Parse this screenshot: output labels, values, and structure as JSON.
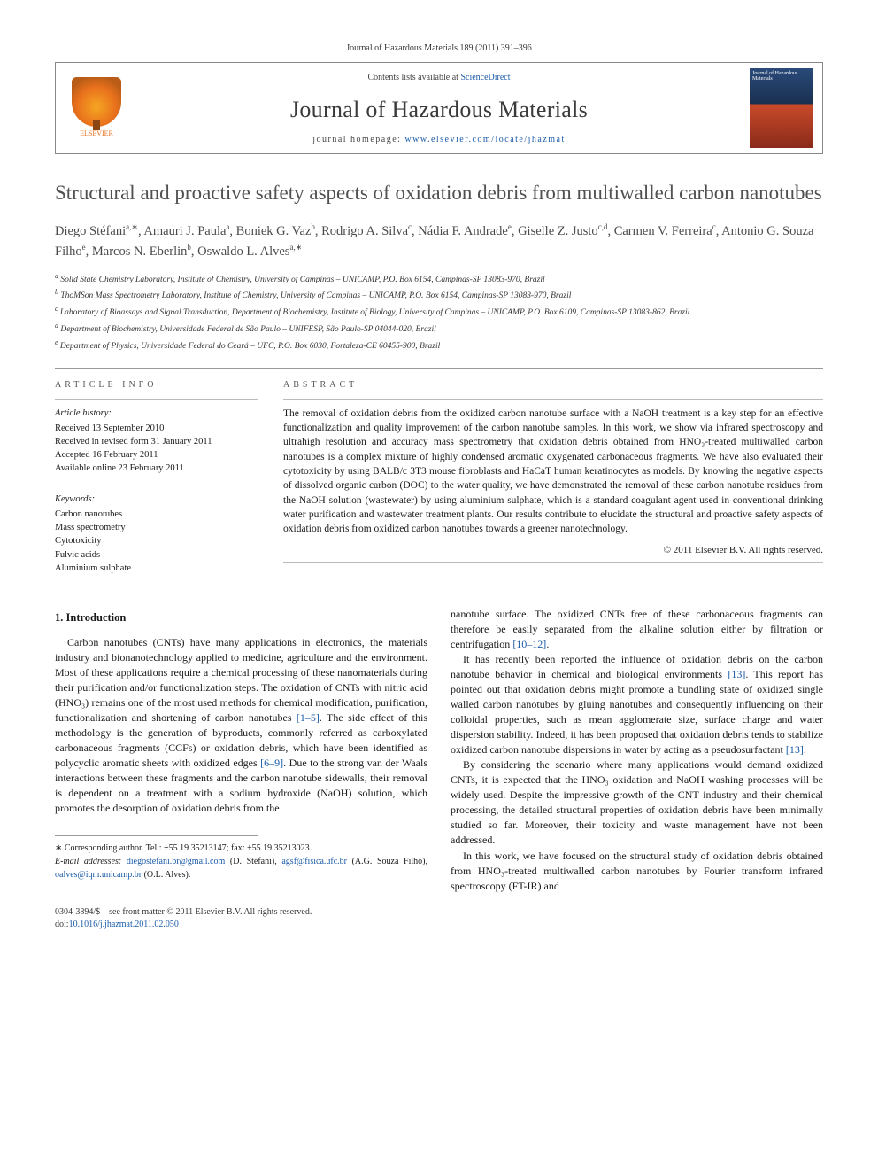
{
  "runningHead": "Journal of Hazardous Materials 189 (2011) 391–396",
  "masthead": {
    "contentsLine_prefix": "Contents lists available at ",
    "contentsLine_link": "ScienceDirect",
    "journalName": "Journal of Hazardous Materials",
    "homepage_prefix": "journal homepage: ",
    "homepage_url": "www.elsevier.com/locate/jhazmat",
    "publisherLabel": "ELSEVIER",
    "coverTopText": "Journal of Hazardous Materials"
  },
  "title": "Structural and proactive safety aspects of oxidation debris from multiwalled carbon nanotubes",
  "authors_html": "Diego Stéfani<sup>a,∗</sup>, Amauri J. Paula<sup>a</sup>, Boniek G. Vaz<sup>b</sup>, Rodrigo A. Silva<sup>c</sup>, Nádia F. Andrade<sup>e</sup>, Giselle Z. Justo<sup>c,d</sup>, Carmen V. Ferreira<sup>c</sup>, Antonio G. Souza Filho<sup>e</sup>, Marcos N. Eberlin<sup>b</sup>, Oswaldo L. Alves<sup>a,∗</sup>",
  "affiliations": [
    "a Solid State Chemistry Laboratory, Institute of Chemistry, University of Campinas – UNICAMP, P.O. Box 6154, Campinas-SP 13083-970, Brazil",
    "b ThoMSon Mass Spectrometry Laboratory, Institute of Chemistry, University of Campinas – UNICAMP, P.O. Box 6154, Campinas-SP 13083-970, Brazil",
    "c Laboratory of Bioassays and Signal Transduction, Department of Biochemistry, Institute of Biology, University of Campinas – UNICAMP, P.O. Box 6109, Campinas-SP 13083-862, Brazil",
    "d Department of Biochemistry, Universidade Federal de São Paulo – UNIFESP, São Paulo-SP 04044-020, Brazil",
    "e Department of Physics, Universidade Federal do Ceará – UFC, P.O. Box 6030, Fortaleza-CE 60455-900, Brazil"
  ],
  "articleInfo": {
    "label": "ARTICLE INFO",
    "historyTitle": "Article history:",
    "history": [
      "Received 13 September 2010",
      "Received in revised form 31 January 2011",
      "Accepted 16 February 2011",
      "Available online 23 February 2011"
    ],
    "keywordsTitle": "Keywords:",
    "keywords": [
      "Carbon nanotubes",
      "Mass spectrometry",
      "Cytotoxicity",
      "Fulvic acids",
      "Aluminium sulphate"
    ]
  },
  "abstract": {
    "label": "ABSTRACT",
    "text": "The removal of oxidation debris from the oxidized carbon nanotube surface with a NaOH treatment is a key step for an effective functionalization and quality improvement of the carbon nanotube samples. In this work, we show via infrared spectroscopy and ultrahigh resolution and accuracy mass spectrometry that oxidation debris obtained from HNO₃-treated multiwalled carbon nanotubes is a complex mixture of highly condensed aromatic oxygenated carbonaceous fragments. We have also evaluated their cytotoxicity by using BALB/c 3T3 mouse fibroblasts and HaCaT human keratinocytes as models. By knowing the negative aspects of dissolved organic carbon (DOC) to the water quality, we have demonstrated the removal of these carbon nanotube residues from the NaOH solution (wastewater) by using aluminium sulphate, which is a standard coagulant agent used in conventional drinking water purification and wastewater treatment plants. Our results contribute to elucidate the structural and proactive safety aspects of oxidation debris from oxidized carbon nanotubes towards a greener nanotechnology.",
    "copyright": "© 2011 Elsevier B.V. All rights reserved."
  },
  "section1": {
    "heading": "1. Introduction",
    "p1": "Carbon nanotubes (CNTs) have many applications in electronics, the materials industry and bionanotechnology applied to medicine, agriculture and the environment. Most of these applications require a chemical processing of these nanomaterials during their purification and/or functionalization steps. The oxidation of CNTs with nitric acid (HNO₃) remains one of the most used methods for chemical modification, purification, functionalization and shortening of carbon nanotubes [1–5]. The side effect of this methodology is the generation of byproducts, commonly referred as carboxylated carbonaceous fragments (CCFs) or oxidation debris, which have been identified as polycyclic aromatic sheets with oxidized edges [6–9]. Due to the strong van der Waals interactions between these fragments and the carbon nanotube sidewalls, their removal is dependent on a treatment with a sodium hydroxide (NaOH) solution, which promotes the desorption of oxidation debris from the",
    "p2": "nanotube surface. The oxidized CNTs free of these carbonaceous fragments can therefore be easily separated from the alkaline solution either by filtration or centrifugation [10–12].",
    "p3": "It has recently been reported the influence of oxidation debris on the carbon nanotube behavior in chemical and biological environments [13]. This report has pointed out that oxidation debris might promote a bundling state of oxidized single walled carbon nanotubes by gluing nanotubes and consequently influencing on their colloidal properties, such as mean agglomerate size, surface charge and water dispersion stability. Indeed, it has been proposed that oxidation debris tends to stabilize oxidized carbon nanotube dispersions in water by acting as a pseudosurfactant [13].",
    "p4": "By considering the scenario where many applications would demand oxidized CNTs, it is expected that the HNO₃ oxidation and NaOH washing processes will be widely used. Despite the impressive growth of the CNT industry and their chemical processing, the detailed structural properties of oxidation debris have been minimally studied so far. Moreover, their toxicity and waste management have not been addressed.",
    "p5": "In this work, we have focused on the structural study of oxidation debris obtained from HNO₃-treated multiwalled carbon nanotubes by Fourier transform infrared spectroscopy (FT-IR) and"
  },
  "corresponding": {
    "label": "∗ Corresponding author. Tel.: +55 19 35213147; fax: +55 19 35213023.",
    "emailsLabel": "E-mail addresses:",
    "emails": [
      {
        "addr": "diegostefani.br@gmail.com",
        "who": "(D. Stéfani)"
      },
      {
        "addr": "agsf@fisica.ufc.br",
        "who": "(A.G. Souza Filho)"
      },
      {
        "addr": "oalves@iqm.unicamp.br",
        "who": "(O.L. Alves)."
      }
    ]
  },
  "footer": {
    "line1": "0304-3894/$ – see front matter © 2011 Elsevier B.V. All rights reserved.",
    "doiLabel": "doi:",
    "doi": "10.1016/j.jhazmat.2011.02.050"
  },
  "colors": {
    "link": "#1a5aa8",
    "text": "#1a1a1a",
    "muted": "#505050",
    "orange": "#e9711c"
  }
}
